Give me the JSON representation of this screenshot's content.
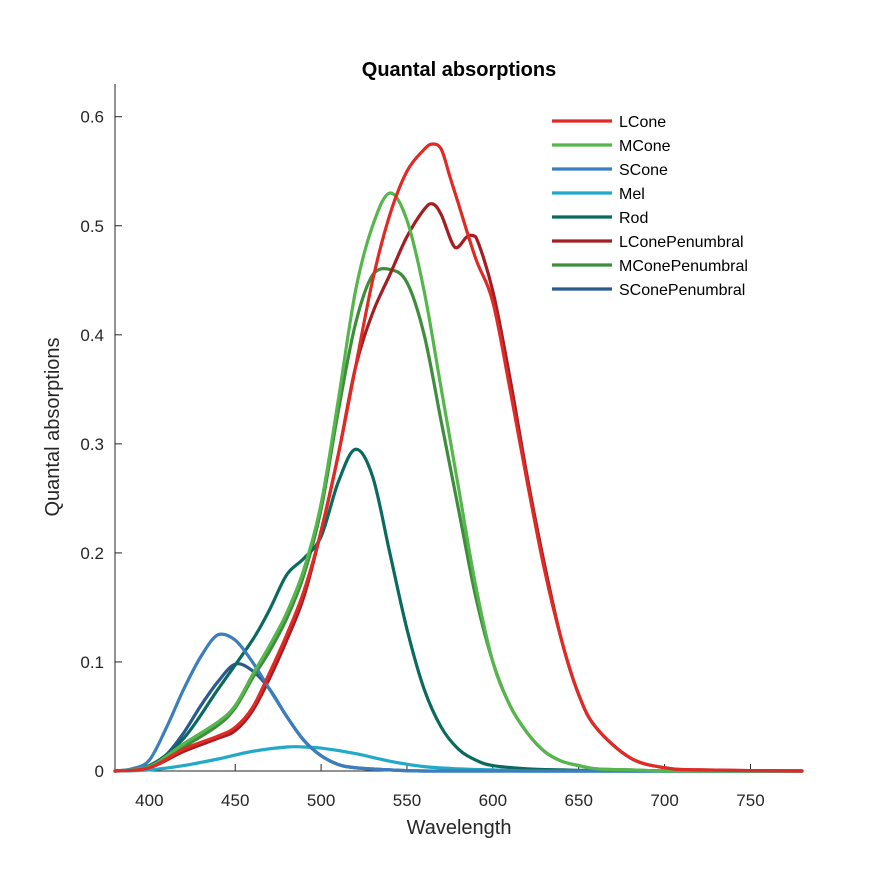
{
  "chart_data": {
    "type": "line",
    "title": "Quantal absorptions",
    "xlabel": "Wavelength",
    "ylabel": "Quantal absorptions",
    "xlim": [
      380,
      780
    ],
    "ylim": [
      0,
      0.63
    ],
    "xticks": [
      400,
      450,
      500,
      550,
      600,
      650,
      700,
      750
    ],
    "yticks": [
      0,
      0.1,
      0.2,
      0.3,
      0.4,
      0.5,
      0.6
    ],
    "ytick_labels": [
      "0",
      "0.1",
      "0.2",
      "0.3",
      "0.4",
      "0.5",
      "0.6"
    ],
    "grid": false,
    "legend_position": "top-right",
    "series": [
      {
        "name": "SConePenumbral",
        "color": "#2a5a8f",
        "x": [
          380,
          390,
          400,
          410,
          420,
          430,
          440,
          450,
          460,
          470,
          480,
          490,
          500,
          510,
          520,
          540,
          560,
          600,
          780
        ],
        "y": [
          0,
          0.001,
          0.004,
          0.015,
          0.035,
          0.06,
          0.082,
          0.098,
          0.092,
          0.075,
          0.05,
          0.028,
          0.014,
          0.006,
          0.003,
          0.001,
          0,
          0,
          0
        ]
      },
      {
        "name": "MConePenumbral",
        "color": "#3e8d3a",
        "x": [
          380,
          400,
          420,
          440,
          450,
          460,
          470,
          480,
          490,
          500,
          510,
          520,
          530,
          540,
          550,
          560,
          570,
          580,
          590,
          600,
          610,
          620,
          630,
          640,
          650,
          660,
          680,
          700,
          720,
          780
        ],
        "y": [
          0,
          0.003,
          0.022,
          0.042,
          0.058,
          0.085,
          0.11,
          0.14,
          0.18,
          0.24,
          0.33,
          0.41,
          0.455,
          0.46,
          0.448,
          0.4,
          0.32,
          0.24,
          0.16,
          0.1,
          0.06,
          0.035,
          0.018,
          0.009,
          0.005,
          0.002,
          0.001,
          0,
          0,
          0
        ]
      },
      {
        "name": "LConePenumbral",
        "color": "#a31e22",
        "x": [
          380,
          400,
          420,
          440,
          450,
          460,
          470,
          480,
          490,
          500,
          510,
          520,
          530,
          540,
          550,
          560,
          565,
          570,
          578,
          585,
          590,
          600,
          610,
          620,
          630,
          640,
          650,
          660,
          680,
          700,
          720,
          780
        ],
        "y": [
          0,
          0.003,
          0.018,
          0.03,
          0.037,
          0.055,
          0.085,
          0.12,
          0.16,
          0.22,
          0.29,
          0.37,
          0.42,
          0.455,
          0.49,
          0.515,
          0.52,
          0.51,
          0.48,
          0.49,
          0.49,
          0.44,
          0.36,
          0.27,
          0.19,
          0.12,
          0.07,
          0.04,
          0.012,
          0.003,
          0.001,
          0
        ]
      },
      {
        "name": "Rod",
        "color": "#0b6a5e",
        "x": [
          380,
          400,
          420,
          440,
          460,
          470,
          480,
          490,
          500,
          510,
          520,
          530,
          540,
          550,
          560,
          570,
          580,
          590,
          600,
          620,
          640,
          680,
          780
        ],
        "y": [
          0,
          0.005,
          0.03,
          0.075,
          0.12,
          0.148,
          0.18,
          0.195,
          0.215,
          0.265,
          0.295,
          0.27,
          0.2,
          0.13,
          0.075,
          0.04,
          0.02,
          0.01,
          0.005,
          0.002,
          0.001,
          0,
          0
        ]
      },
      {
        "name": "Mel",
        "color": "#22a9c9",
        "x": [
          380,
          400,
          420,
          440,
          460,
          480,
          490,
          500,
          520,
          540,
          560,
          580,
          600,
          620,
          650,
          780
        ],
        "y": [
          0,
          0.001,
          0.005,
          0.011,
          0.018,
          0.022,
          0.022,
          0.021,
          0.016,
          0.009,
          0.004,
          0.002,
          0.001,
          0,
          0,
          0
        ]
      },
      {
        "name": "SCone",
        "color": "#3c7ebd",
        "x": [
          380,
          390,
          400,
          410,
          420,
          430,
          440,
          450,
          460,
          470,
          480,
          490,
          500,
          510,
          520,
          540,
          560,
          600,
          780
        ],
        "y": [
          0,
          0.002,
          0.01,
          0.04,
          0.075,
          0.105,
          0.125,
          0.12,
          0.1,
          0.075,
          0.05,
          0.028,
          0.014,
          0.006,
          0.003,
          0.001,
          0,
          0,
          0
        ]
      },
      {
        "name": "MCone",
        "color": "#55b64c",
        "x": [
          380,
          400,
          420,
          440,
          450,
          460,
          470,
          480,
          490,
          500,
          510,
          520,
          530,
          540,
          550,
          560,
          570,
          580,
          590,
          600,
          610,
          620,
          630,
          640,
          650,
          660,
          680,
          700,
          720,
          780
        ],
        "y": [
          0,
          0.004,
          0.025,
          0.045,
          0.06,
          0.088,
          0.115,
          0.145,
          0.185,
          0.245,
          0.34,
          0.44,
          0.5,
          0.53,
          0.505,
          0.44,
          0.35,
          0.26,
          0.17,
          0.1,
          0.06,
          0.035,
          0.018,
          0.009,
          0.005,
          0.002,
          0.001,
          0,
          0,
          0
        ]
      },
      {
        "name": "LCone",
        "color": "#df2a26",
        "x": [
          380,
          400,
          420,
          440,
          450,
          460,
          470,
          480,
          490,
          500,
          510,
          520,
          530,
          540,
          550,
          560,
          565,
          570,
          575,
          580,
          590,
          600,
          610,
          620,
          630,
          640,
          650,
          660,
          680,
          700,
          720,
          780
        ],
        "y": [
          0,
          0.003,
          0.02,
          0.032,
          0.04,
          0.058,
          0.09,
          0.125,
          0.165,
          0.22,
          0.29,
          0.37,
          0.45,
          0.51,
          0.55,
          0.57,
          0.575,
          0.57,
          0.545,
          0.52,
          0.47,
          0.43,
          0.35,
          0.265,
          0.185,
          0.12,
          0.07,
          0.04,
          0.012,
          0.003,
          0.001,
          0
        ]
      }
    ],
    "legend": [
      {
        "name": "LCone",
        "color": "#df2a26"
      },
      {
        "name": "MCone",
        "color": "#55b64c"
      },
      {
        "name": "SCone",
        "color": "#3c7ebd"
      },
      {
        "name": "Mel",
        "color": "#22a9c9"
      },
      {
        "name": "Rod",
        "color": "#0b6a5e"
      },
      {
        "name": "LConePenumbral",
        "color": "#a31e22"
      },
      {
        "name": "MConePenumbral",
        "color": "#3e8d3a"
      },
      {
        "name": "SConePenumbral",
        "color": "#2a5a8f"
      }
    ]
  }
}
